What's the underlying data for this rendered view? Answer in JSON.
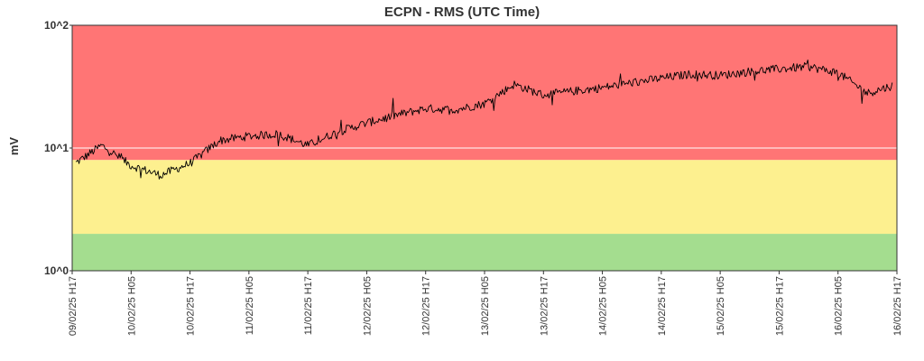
{
  "chart_data": {
    "type": "line",
    "title": "ECPN - RMS (UTC Time)",
    "xlabel": "",
    "ylabel": "mV",
    "y_scale": "log",
    "ylim": [
      1,
      100
    ],
    "y_ticks": [
      {
        "value": 1,
        "label": "10^0"
      },
      {
        "value": 10,
        "label": "10^1"
      },
      {
        "value": 100,
        "label": "10^2"
      }
    ],
    "x_tick_labels": [
      "09/02/25 H17",
      "10/02/25 H05",
      "10/02/25 H17",
      "11/02/25 H05",
      "11/02/25 H17",
      "12/02/25 H05",
      "12/02/25 H17",
      "13/02/25 H05",
      "13/02/25 H17",
      "14/02/25 H05",
      "14/02/25 H17",
      "15/02/25 H05",
      "15/02/25 H17",
      "16/02/25 H05",
      "16/02/25 H17"
    ],
    "grid": true,
    "legend": "none",
    "bands": [
      {
        "name": "green",
        "from": 1,
        "to": 2,
        "color": "#a4dd8f"
      },
      {
        "name": "yellow",
        "from": 2,
        "to": 8,
        "color": "#fdf08f"
      },
      {
        "name": "red",
        "from": 8,
        "to": 100,
        "color": "#ff7575"
      }
    ],
    "series": [
      {
        "color": "#000000",
        "x": [
          "09/02/25 H17",
          "09/02/25 H23",
          "10/02/25 H05",
          "10/02/25 H11",
          "10/02/25 H17",
          "10/02/25 H23",
          "11/02/25 H05",
          "11/02/25 H11",
          "11/02/25 H17",
          "11/02/25 H23",
          "12/02/25 H05",
          "12/02/25 H11",
          "12/02/25 H17",
          "12/02/25 H23",
          "13/02/25 H05",
          "13/02/25 H11",
          "13/02/25 H17",
          "13/02/25 H23",
          "14/02/25 H05",
          "14/02/25 H11",
          "14/02/25 H17",
          "14/02/25 H23",
          "15/02/25 H05",
          "15/02/25 H11",
          "15/02/25 H17",
          "15/02/25 H23",
          "16/02/25 H05",
          "16/02/25 H11",
          "16/02/25 H17"
        ],
        "values": [
          7.2,
          10.5,
          7.2,
          6.0,
          7.5,
          11.5,
          12.5,
          13.0,
          10.5,
          13.5,
          16.0,
          18.5,
          21.0,
          20.5,
          23.0,
          33.0,
          27.0,
          29.0,
          31.0,
          34.0,
          37.0,
          40.0,
          39.0,
          42.0,
          44.0,
          46.0,
          41.0,
          28.0,
          33.0
        ]
      }
    ]
  }
}
